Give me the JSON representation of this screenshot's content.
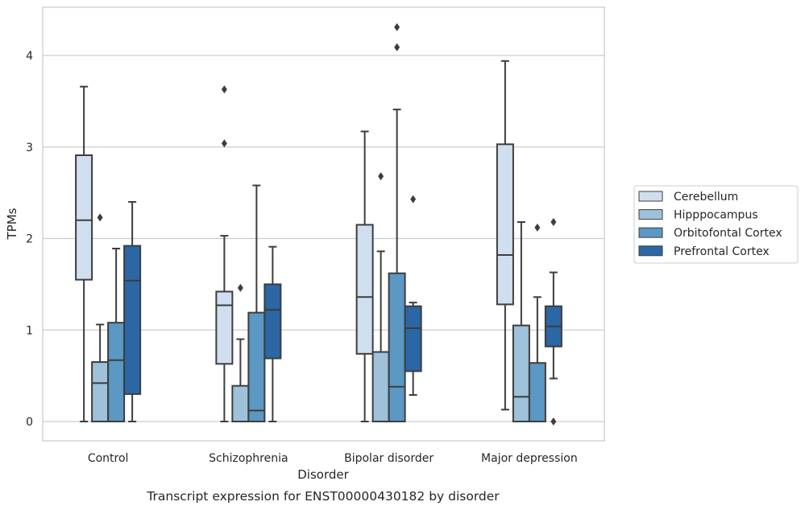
{
  "chart_data": {
    "type": "boxplot",
    "title": "Transcript expression for ENST00000430182 by disorder",
    "xlabel": "Disorder",
    "ylabel": "TPMs",
    "ylim": [
      -0.2,
      4.55
    ],
    "yticks": [
      0,
      1,
      2,
      3,
      4
    ],
    "grid": "horizontal",
    "legend_position": "right",
    "categories": [
      "Control",
      "Schizophrenia",
      "Bipolar disorder",
      "Major depression"
    ],
    "series": [
      {
        "name": "Cerebellum",
        "color": "#d0dfef",
        "boxes": [
          {
            "whislo": 0.0,
            "q1": 1.55,
            "med": 2.2,
            "q3": 2.91,
            "whishi": 3.66,
            "fliers": []
          },
          {
            "whislo": 0.0,
            "q1": 0.63,
            "med": 1.27,
            "q3": 1.42,
            "whishi": 2.03,
            "fliers": [
              3.04,
              3.63
            ]
          },
          {
            "whislo": 0.0,
            "q1": 0.74,
            "med": 1.36,
            "q3": 2.15,
            "whishi": 3.17,
            "fliers": []
          },
          {
            "whislo": 0.13,
            "q1": 1.28,
            "med": 1.82,
            "q3": 3.03,
            "whishi": 3.94,
            "fliers": []
          }
        ]
      },
      {
        "name": "Hipppocampus",
        "color": "#9dc2da",
        "boxes": [
          {
            "whislo": 0.0,
            "q1": 0.0,
            "med": 0.42,
            "q3": 0.65,
            "whishi": 1.06,
            "fliers": [
              2.23
            ]
          },
          {
            "whislo": 0.0,
            "q1": 0.0,
            "med": 0.0,
            "q3": 0.39,
            "whishi": 0.9,
            "fliers": [
              1.46
            ]
          },
          {
            "whislo": 0.0,
            "q1": 0.0,
            "med": 0.0,
            "q3": 0.76,
            "whishi": 1.86,
            "fliers": [
              2.68
            ]
          },
          {
            "whislo": 0.0,
            "q1": 0.0,
            "med": 0.27,
            "q3": 1.05,
            "whishi": 2.18,
            "fliers": []
          }
        ]
      },
      {
        "name": "Orbitofontal Cortex",
        "color": "#5b98c3",
        "boxes": [
          {
            "whislo": 0.0,
            "q1": 0.0,
            "med": 0.67,
            "q3": 1.08,
            "whishi": 1.89,
            "fliers": []
          },
          {
            "whislo": 0.0,
            "q1": 0.0,
            "med": 0.12,
            "q3": 1.19,
            "whishi": 2.58,
            "fliers": []
          },
          {
            "whislo": 0.0,
            "q1": 0.0,
            "med": 0.38,
            "q3": 1.62,
            "whishi": 3.41,
            "fliers": [
              4.09,
              4.31
            ]
          },
          {
            "whislo": 0.0,
            "q1": 0.0,
            "med": 0.0,
            "q3": 0.64,
            "whishi": 1.36,
            "fliers": [
              2.12
            ]
          }
        ]
      },
      {
        "name": "Prefrontal Cortex",
        "color": "#2a67a4",
        "boxes": [
          {
            "whislo": 0.0,
            "q1": 0.3,
            "med": 1.54,
            "q3": 1.92,
            "whishi": 2.4,
            "fliers": []
          },
          {
            "whislo": 0.0,
            "q1": 0.69,
            "med": 1.22,
            "q3": 1.5,
            "whishi": 1.91,
            "fliers": []
          },
          {
            "whislo": 0.29,
            "q1": 0.55,
            "med": 1.02,
            "q3": 1.26,
            "whishi": 1.3,
            "fliers": [
              2.43
            ]
          },
          {
            "whislo": 0.47,
            "q1": 0.82,
            "med": 1.04,
            "q3": 1.26,
            "whishi": 1.63,
            "fliers": [
              0.0,
              2.18
            ]
          }
        ]
      }
    ]
  }
}
